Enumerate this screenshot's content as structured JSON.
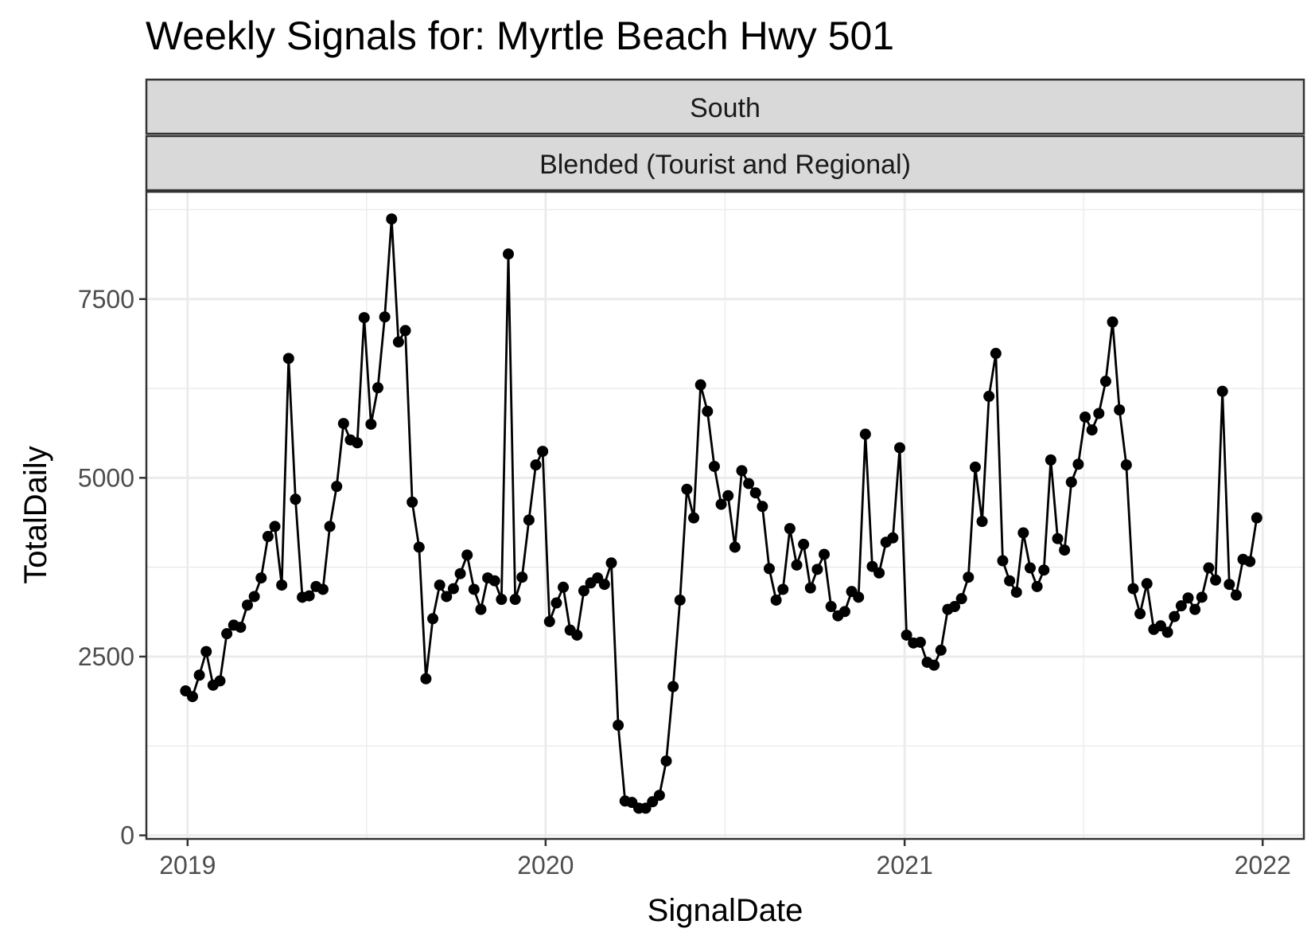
{
  "chart_data": {
    "type": "line",
    "title": "Weekly Signals for: Myrtle Beach Hwy 501",
    "facet_strips": [
      "South",
      "Blended (Tourist and Regional)"
    ],
    "xlabel": "SignalDate",
    "ylabel": "TotalDaily",
    "x_ticks": [
      "2019",
      "2020",
      "2021",
      "2022"
    ],
    "y_ticks": [
      "0",
      "2500",
      "5000",
      "7500"
    ],
    "xlim": [
      "2018-11-20",
      "2022-02-12"
    ],
    "ylim": [
      -50,
      9000
    ],
    "grid": true,
    "colors": {
      "line": "#000000",
      "point": "#000000",
      "grid": "#ebebeb",
      "strip": "#d9d9d9",
      "border": "#333333"
    },
    "series": [
      {
        "dates": [
          "2018-12-30",
          "2019-01-06",
          "2019-01-13",
          "2019-01-20",
          "2019-01-27",
          "2019-02-03",
          "2019-02-10",
          "2019-02-17",
          "2019-02-24",
          "2019-03-03",
          "2019-03-10",
          "2019-03-17",
          "2019-03-24",
          "2019-03-31",
          "2019-04-07",
          "2019-04-14",
          "2019-04-21",
          "2019-04-28",
          "2019-05-05",
          "2019-05-12",
          "2019-05-19",
          "2019-05-26",
          "2019-06-02",
          "2019-06-09",
          "2019-06-16",
          "2019-06-23",
          "2019-06-30",
          "2019-07-07",
          "2019-07-14",
          "2019-07-21",
          "2019-07-28",
          "2019-08-04",
          "2019-08-11",
          "2019-08-18",
          "2019-08-25",
          "2019-09-01",
          "2019-09-08",
          "2019-09-15",
          "2019-09-22",
          "2019-09-29",
          "2019-10-06",
          "2019-10-13",
          "2019-10-20",
          "2019-10-27",
          "2019-11-03",
          "2019-11-10",
          "2019-11-17",
          "2019-11-24",
          "2019-12-01",
          "2019-12-08",
          "2019-12-15",
          "2019-12-22",
          "2019-12-29",
          "2020-01-05",
          "2020-01-12",
          "2020-01-19",
          "2020-01-26",
          "2020-02-02",
          "2020-02-09",
          "2020-02-16",
          "2020-02-23",
          "2020-03-01",
          "2020-03-08",
          "2020-03-15",
          "2020-03-22",
          "2020-03-29",
          "2020-04-05",
          "2020-04-12",
          "2020-04-19",
          "2020-04-26",
          "2020-05-03",
          "2020-05-10",
          "2020-05-17",
          "2020-05-24",
          "2020-05-31",
          "2020-06-07",
          "2020-06-14",
          "2020-06-21",
          "2020-06-28",
          "2020-07-05",
          "2020-07-12",
          "2020-07-19",
          "2020-07-26",
          "2020-08-02",
          "2020-08-09",
          "2020-08-16",
          "2020-08-23",
          "2020-08-30",
          "2020-09-06",
          "2020-09-13",
          "2020-09-20",
          "2020-09-27",
          "2020-10-04",
          "2020-10-11",
          "2020-10-18",
          "2020-10-25",
          "2020-11-01",
          "2020-11-08",
          "2020-11-15",
          "2020-11-22",
          "2020-11-29",
          "2020-12-06",
          "2020-12-13",
          "2020-12-20",
          "2020-12-27",
          "2021-01-03",
          "2021-01-10",
          "2021-01-17",
          "2021-01-24",
          "2021-01-31",
          "2021-02-07",
          "2021-02-14",
          "2021-02-21",
          "2021-02-28",
          "2021-03-07",
          "2021-03-14",
          "2021-03-21",
          "2021-03-28",
          "2021-04-04",
          "2021-04-11",
          "2021-04-18",
          "2021-04-25",
          "2021-05-02",
          "2021-05-09",
          "2021-05-16",
          "2021-05-23",
          "2021-05-30",
          "2021-06-06",
          "2021-06-13",
          "2021-06-20",
          "2021-06-27",
          "2021-07-04",
          "2021-07-11",
          "2021-07-18",
          "2021-07-25",
          "2021-08-01",
          "2021-08-08",
          "2021-08-15",
          "2021-08-22",
          "2021-08-29",
          "2021-09-05",
          "2021-09-12",
          "2021-09-19",
          "2021-09-26",
          "2021-10-03",
          "2021-10-10",
          "2021-10-17",
          "2021-10-24",
          "2021-10-31",
          "2021-11-07",
          "2021-11-14",
          "2021-11-21",
          "2021-11-28",
          "2021-12-05",
          "2021-12-12",
          "2021-12-19",
          "2021-12-26"
        ],
        "values": [
          2020,
          1940,
          2240,
          2570,
          2100,
          2160,
          2820,
          2940,
          2910,
          3220,
          3340,
          3600,
          4180,
          4320,
          3500,
          6670,
          4700,
          3330,
          3350,
          3480,
          3440,
          4320,
          4880,
          5760,
          5530,
          5490,
          7240,
          5750,
          6260,
          7250,
          8620,
          6900,
          7060,
          4660,
          4030,
          2190,
          3030,
          3500,
          3340,
          3450,
          3660,
          3920,
          3440,
          3160,
          3600,
          3560,
          3300,
          8130,
          3300,
          3610,
          4410,
          5180,
          5370,
          2990,
          3250,
          3470,
          2870,
          2800,
          3420,
          3530,
          3600,
          3510,
          3810,
          1540,
          480,
          460,
          380,
          380,
          470,
          560,
          1040,
          2080,
          3290,
          4840,
          4440,
          6300,
          5930,
          5160,
          4630,
          4750,
          4030,
          5100,
          4920,
          4790,
          4600,
          3730,
          3290,
          3440,
          4290,
          3780,
          4070,
          3460,
          3720,
          3930,
          3200,
          3070,
          3130,
          3410,
          3330,
          5610,
          3760,
          3670,
          4100,
          4160,
          5420,
          2800,
          2690,
          2700,
          2420,
          2380,
          2590,
          3160,
          3200,
          3310,
          3610,
          5150,
          4390,
          6140,
          6740,
          3840,
          3560,
          3400,
          4230,
          3740,
          3480,
          3710,
          5250,
          4150,
          3990,
          4940,
          5190,
          5850,
          5670,
          5900,
          6350,
          7180,
          5950,
          5180,
          3450,
          3100,
          3520,
          2880,
          2930,
          2840,
          3060,
          3210,
          3320,
          3160,
          3330,
          3740,
          3570,
          6210,
          3510,
          3360,
          3860,
          3830,
          4440
        ]
      }
    ]
  }
}
